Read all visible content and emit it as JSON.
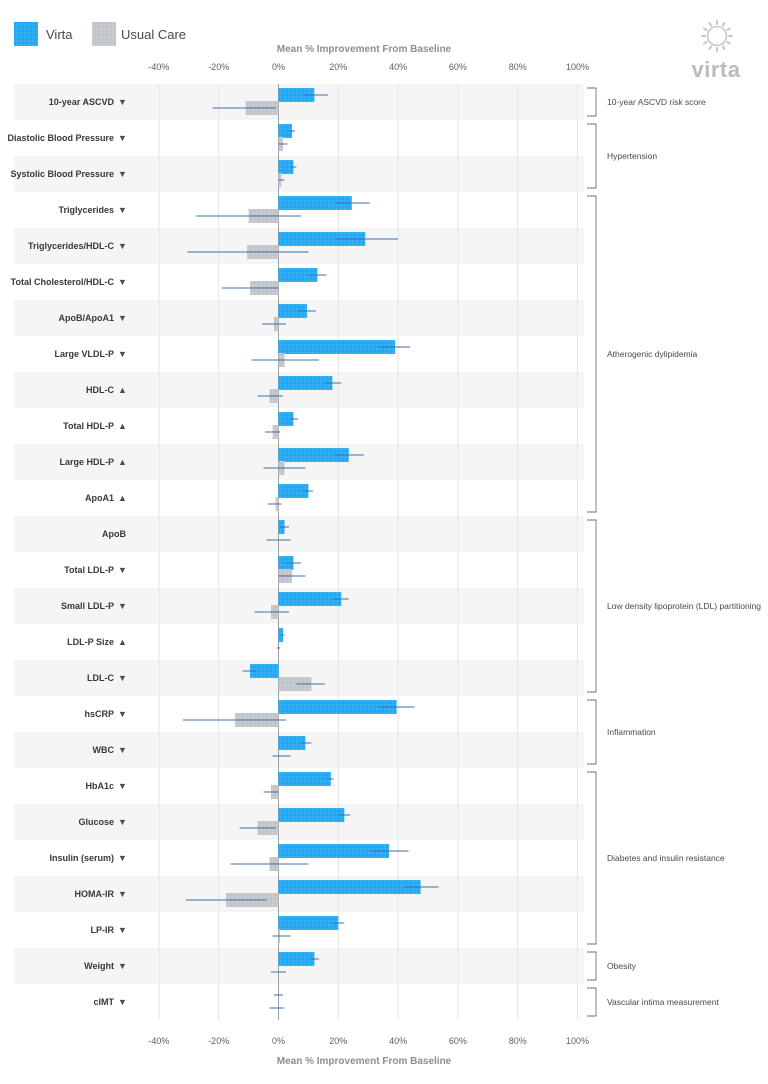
{
  "brand": {
    "name": "virta",
    "logo_icon": "sun-gear-icon"
  },
  "legend": [
    {
      "label": "Virta",
      "color": "#29aaf4"
    },
    {
      "label": "Usual Care",
      "color": "#c4c8cd"
    }
  ],
  "chart_data": {
    "type": "bar",
    "orientation": "horizontal",
    "title": "",
    "xlabel": "Mean % Improvement From Baseline",
    "xlim": [
      -40,
      100
    ],
    "x_ticks": [
      "-40%",
      "-20%",
      "0%",
      "20%",
      "40%",
      "60%",
      "80%",
      "100%"
    ],
    "x_tick_values": [
      -40,
      -20,
      0,
      20,
      40,
      60,
      80,
      100
    ],
    "grid": true,
    "legend_position": "top-left",
    "colors": {
      "virta": "#29aaf4",
      "usual_care": "#c4c8cd",
      "error_bar": "#3d6fa8",
      "stripe": "#f5f5f5"
    },
    "arrow_up": "▲",
    "arrow_down": "▼",
    "series": [
      {
        "name": "Virta",
        "key": "virta"
      },
      {
        "name": "Usual Care",
        "key": "usual_care"
      }
    ],
    "categories": [
      {
        "label": "10-year ASCVD",
        "arrow": "down",
        "virta": [
          12,
          8,
          16.5
        ],
        "usual_care": [
          -11,
          -22,
          -1
        ]
      },
      {
        "label": "Diastolic Blood Pressure",
        "arrow": "down",
        "virta": [
          4.5,
          3.5,
          5.5
        ],
        "usual_care": [
          1.5,
          0,
          3
        ]
      },
      {
        "label": "Systolic Blood Pressure",
        "arrow": "down",
        "virta": [
          5,
          4,
          6
        ],
        "usual_care": [
          1,
          0,
          2
        ]
      },
      {
        "label": "Triglycerides",
        "arrow": "down",
        "virta": [
          24.5,
          19,
          30.5
        ],
        "usual_care": [
          -10,
          -27.5,
          7.5
        ]
      },
      {
        "label": "Triglycerides/HDL-C",
        "arrow": "down",
        "virta": [
          29,
          19,
          40
        ],
        "usual_care": [
          -10.5,
          -30.5,
          10
        ]
      },
      {
        "label": "Total Cholesterol/HDL-C",
        "arrow": "down",
        "virta": [
          13,
          10,
          16
        ],
        "usual_care": [
          -9.5,
          -19,
          0
        ]
      },
      {
        "label": "ApoB/ApoA1",
        "arrow": "down",
        "virta": [
          9.5,
          6.5,
          12.5
        ],
        "usual_care": [
          -1.5,
          -5.5,
          2.5
        ]
      },
      {
        "label": "Large VLDL-P",
        "arrow": "down",
        "virta": [
          39,
          33.5,
          44
        ],
        "usual_care": [
          2,
          -9,
          13.5
        ]
      },
      {
        "label": "HDL-C",
        "arrow": "up",
        "virta": [
          18,
          15.5,
          21
        ],
        "usual_care": [
          -3,
          -7,
          1.5
        ]
      },
      {
        "label": "Total HDL-P",
        "arrow": "up",
        "virta": [
          5,
          4,
          6.5
        ],
        "usual_care": [
          -2,
          -4.5,
          0.5
        ]
      },
      {
        "label": "Large HDL-P",
        "arrow": "up",
        "virta": [
          23.5,
          18.5,
          28.5
        ],
        "usual_care": [
          2,
          -5,
          9
        ]
      },
      {
        "label": "ApoA1",
        "arrow": "up",
        "virta": [
          10,
          8,
          11.5
        ],
        "usual_care": [
          -1,
          -3.5,
          1
        ]
      },
      {
        "label": "ApoB",
        "arrow": "none",
        "virta": [
          2,
          0.5,
          3.5
        ],
        "usual_care": [
          0,
          -4,
          4
        ]
      },
      {
        "label": "Total LDL-P",
        "arrow": "down",
        "virta": [
          5,
          2.5,
          7.5
        ],
        "usual_care": [
          4.5,
          0,
          9
        ]
      },
      {
        "label": "Small LDL-P",
        "arrow": "down",
        "virta": [
          21,
          18,
          23.5
        ],
        "usual_care": [
          -2.5,
          -8,
          3.5
        ]
      },
      {
        "label": "LDL-P Size",
        "arrow": "up",
        "virta": [
          1.5,
          1,
          2
        ],
        "usual_care": [
          0,
          -0.5,
          0.5
        ]
      },
      {
        "label": "LDL-C",
        "arrow": "down",
        "virta": [
          -9.5,
          -12,
          -7.5
        ],
        "usual_care": [
          11,
          6,
          15.5
        ]
      },
      {
        "label": "hsCRP",
        "arrow": "down",
        "virta": [
          39.5,
          33.5,
          45.5
        ],
        "usual_care": [
          -14.5,
          -32,
          2.5
        ]
      },
      {
        "label": "WBC",
        "arrow": "down",
        "virta": [
          9,
          7.5,
          11
        ],
        "usual_care": [
          0,
          -2,
          4
        ]
      },
      {
        "label": "HbA1c",
        "arrow": "down",
        "virta": [
          17.5,
          16,
          18.5
        ],
        "usual_care": [
          -2.5,
          -5,
          0
        ]
      },
      {
        "label": "Glucose",
        "arrow": "down",
        "virta": [
          22,
          20,
          24
        ],
        "usual_care": [
          -7,
          -13,
          -1
        ]
      },
      {
        "label": "Insulin (serum)",
        "arrow": "down",
        "virta": [
          37,
          31,
          43.5
        ],
        "usual_care": [
          -3,
          -16,
          10
        ]
      },
      {
        "label": "HOMA-IR",
        "arrow": "down",
        "virta": [
          47.5,
          42,
          53.5
        ],
        "usual_care": [
          -17.5,
          -31,
          -4
        ]
      },
      {
        "label": "LP-IR",
        "arrow": "down",
        "virta": [
          20,
          18,
          22
        ],
        "usual_care": [
          0.5,
          -2,
          4
        ]
      },
      {
        "label": "Weight",
        "arrow": "down",
        "virta": [
          12,
          10.5,
          13.5
        ],
        "usual_care": [
          0,
          -2.5,
          2.5
        ]
      },
      {
        "label": "cIMT",
        "arrow": "down",
        "virta": [
          0,
          -1.5,
          1.5
        ],
        "usual_care": [
          0,
          -3,
          2
        ]
      }
    ],
    "groups": [
      {
        "label": "10-year ASCVD risk score",
        "from": 0,
        "to": 0
      },
      {
        "label": "Hypertension",
        "from": 1,
        "to": 2
      },
      {
        "label": "Atherogenic dylipidemia",
        "from": 3,
        "to": 11
      },
      {
        "label": "Low density lipoprotein (LDL) partitioning",
        "from": 12,
        "to": 16
      },
      {
        "label": "Inflammation",
        "from": 17,
        "to": 18
      },
      {
        "label": "Diabetes and insulin resistance",
        "from": 19,
        "to": 23
      },
      {
        "label": "Obesity",
        "from": 24,
        "to": 24
      },
      {
        "label": "Vascular intima measurement",
        "from": 25,
        "to": 25
      }
    ]
  }
}
